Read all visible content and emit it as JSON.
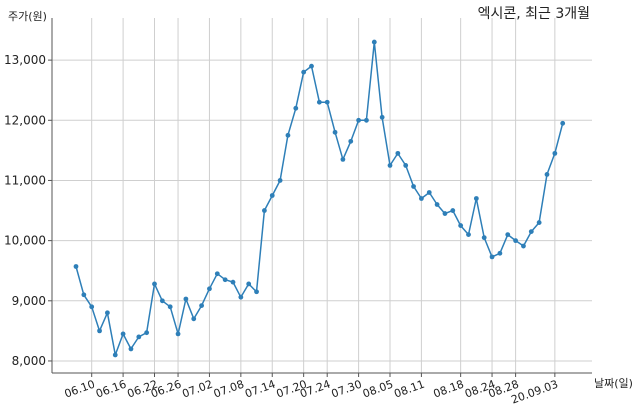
{
  "chart_data": {
    "type": "line",
    "title": "엑시콘, 최근 3개월",
    "ylabel": "주가(원)",
    "xlabel": "날짜(일)",
    "ylim": [
      7800,
      13700
    ],
    "y_ticks": [
      8000,
      9000,
      10000,
      11000,
      12000,
      13000
    ],
    "y_tick_labels": [
      "8,000",
      "9,000",
      "10,000",
      "11,000",
      "12,000",
      "13,000"
    ],
    "x_tick_labels": [
      "06.10",
      "06.16",
      "06.22",
      "06.26",
      "07.02",
      "07.08",
      "07.14",
      "07.20",
      "07.24",
      "07.30",
      "08.05",
      "08.11",
      "08.18",
      "08.24",
      "08.28",
      "20.09.03"
    ],
    "x_tick_positions": [
      2,
      6,
      10,
      13,
      17,
      21,
      25,
      29,
      32,
      36,
      40,
      44,
      49,
      53,
      56,
      61
    ],
    "grid": true,
    "line_color": "#2e7fb8",
    "series": [
      {
        "values": [
          9570,
          9100,
          8900,
          8500,
          8800,
          8100,
          8450,
          8200,
          8400,
          8470,
          9280,
          9000,
          8900,
          8450,
          9030,
          8700,
          8920,
          9200,
          9450,
          9350,
          9310,
          9060,
          9280,
          9150,
          10500,
          10750,
          11000,
          11750,
          12200,
          12800,
          12900,
          12300,
          12300,
          11800,
          11350,
          11650,
          12000,
          12000,
          13300,
          12050,
          11250,
          11450,
          11250,
          10900,
          10700,
          10800,
          10600,
          10450,
          10500,
          10250,
          10100,
          10700,
          10050,
          9730,
          9790,
          10100,
          10000,
          9910,
          10150,
          10300,
          11100,
          11450,
          11950
        ]
      }
    ]
  }
}
